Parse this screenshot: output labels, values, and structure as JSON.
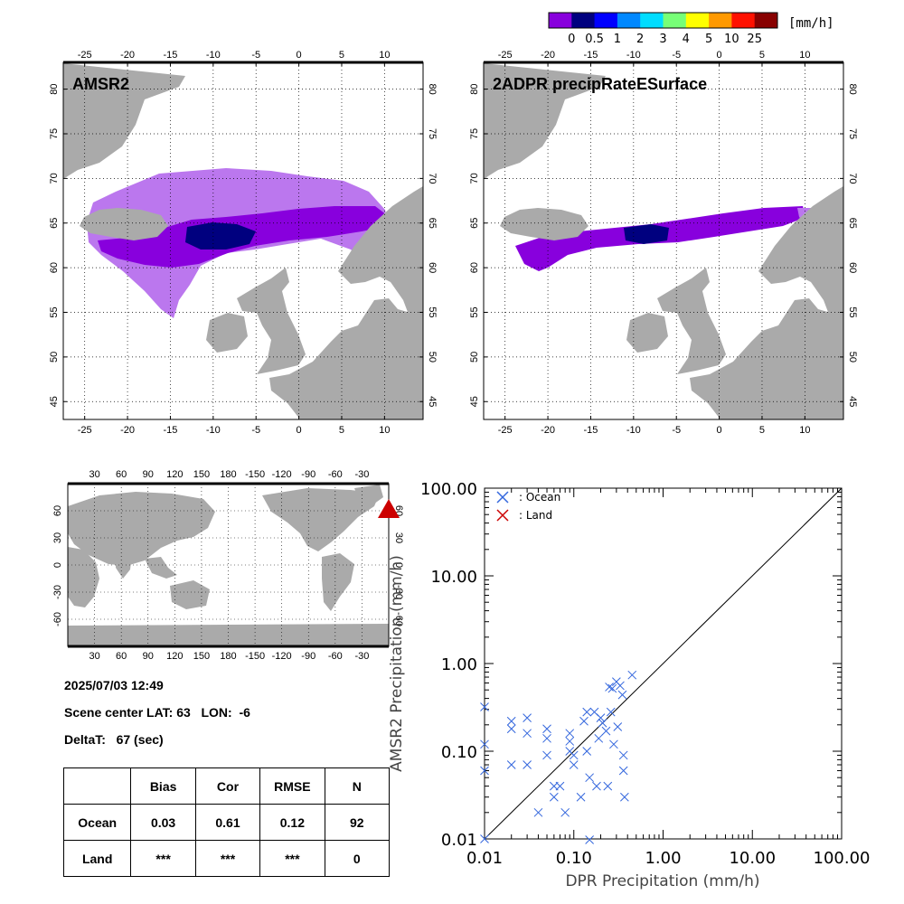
{
  "colorbar": {
    "unit": "[mm/h]",
    "labels": [
      "0",
      "0.5",
      "1",
      "2",
      "3",
      "4",
      "5",
      "10",
      "25"
    ],
    "colors": [
      "#8800dd",
      "#00007f",
      "#0000ff",
      "#0088ff",
      "#00ddff",
      "#77ff77",
      "#ffff00",
      "#ff9900",
      "#ff1100",
      "#880000"
    ]
  },
  "maps": {
    "map_left_title": "AMSR2",
    "map_right_title": "2ADPR precipRateESurface",
    "lon_ticks": [
      "-25",
      "-20",
      "-15",
      "-10",
      "-5",
      "0",
      "5",
      "10"
    ],
    "lat_ticks": [
      "80",
      "75",
      "70",
      "65",
      "60",
      "55",
      "50",
      "45"
    ],
    "land_color": "#aaaaaa",
    "precip_light_color": "#bb77ee",
    "precip_medium_color": "#8800dd",
    "precip_heavy_color": "#00007f"
  },
  "globe": {
    "lon_ticks": [
      "30",
      "60",
      "90",
      "120",
      "150",
      "180",
      "-150",
      "-120",
      "-90",
      "-60",
      "-30"
    ],
    "lat_ticks": [
      "60",
      "30",
      "0",
      "-30",
      "-60"
    ],
    "marker_color": "#cc0000"
  },
  "info": {
    "datetime": "2025/07/03 12:49",
    "scene_center": "Scene center LAT: 63   LON:  -6",
    "delta_t": "DeltaT:   67 (sec)"
  },
  "stats_table": {
    "headers": [
      "",
      "Bias",
      "Cor",
      "RMSE",
      "N"
    ],
    "rows": [
      [
        "Ocean",
        "0.03",
        "0.61",
        "0.12",
        "92"
      ],
      [
        "Land",
        "***",
        "***",
        "***",
        "0"
      ]
    ]
  },
  "chart_data": {
    "type": "scatter",
    "xlabel": "DPR Precipitation (mm/h)",
    "ylabel": "AMSR2 Precipitation (mm/h)",
    "xscale": "log",
    "yscale": "log",
    "xlim": [
      0.01,
      100
    ],
    "ylim": [
      0.01,
      100
    ],
    "x_tick_labels": [
      "0.01",
      "0.10",
      "1.00",
      "10.00",
      "100.00"
    ],
    "y_tick_labels": [
      "0.01",
      "0.10",
      "1.00",
      "10.00",
      "100.00"
    ],
    "legend_position": "top-left",
    "reference_line": "1:1",
    "series": [
      {
        "name": ": Ocean",
        "color": "#3366dd",
        "marker": "x",
        "points": [
          [
            0.01,
            0.32
          ],
          [
            0.01,
            0.12
          ],
          [
            0.01,
            0.06
          ],
          [
            0.01,
            0.01
          ],
          [
            0.02,
            0.22
          ],
          [
            0.02,
            0.18
          ],
          [
            0.02,
            0.07
          ],
          [
            0.03,
            0.24
          ],
          [
            0.03,
            0.16
          ],
          [
            0.03,
            0.07
          ],
          [
            0.04,
            0.02
          ],
          [
            0.05,
            0.18
          ],
          [
            0.05,
            0.14
          ],
          [
            0.05,
            0.09
          ],
          [
            0.06,
            0.04
          ],
          [
            0.06,
            0.03
          ],
          [
            0.07,
            0.04
          ],
          [
            0.08,
            0.02
          ],
          [
            0.09,
            0.16
          ],
          [
            0.09,
            0.13
          ],
          [
            0.09,
            0.1
          ],
          [
            0.1,
            0.09
          ],
          [
            0.1,
            0.07
          ],
          [
            0.12,
            0.03
          ],
          [
            0.13,
            0.22
          ],
          [
            0.14,
            0.28
          ],
          [
            0.14,
            0.1
          ],
          [
            0.15,
            0.05
          ],
          [
            0.15,
            0.009
          ],
          [
            0.17,
            0.28
          ],
          [
            0.18,
            0.04
          ],
          [
            0.19,
            0.14
          ],
          [
            0.2,
            0.24
          ],
          [
            0.21,
            0.21
          ],
          [
            0.23,
            0.17
          ],
          [
            0.24,
            0.04
          ],
          [
            0.25,
            0.54
          ],
          [
            0.26,
            0.28
          ],
          [
            0.27,
            0.52
          ],
          [
            0.28,
            0.12
          ],
          [
            0.3,
            0.62
          ],
          [
            0.31,
            0.19
          ],
          [
            0.33,
            0.56
          ],
          [
            0.35,
            0.44
          ],
          [
            0.36,
            0.09
          ],
          [
            0.36,
            0.06
          ],
          [
            0.37,
            0.03
          ],
          [
            0.45,
            0.74
          ]
        ]
      },
      {
        "name": ": Land",
        "color": "#cc0000",
        "marker": "x",
        "points": []
      }
    ]
  }
}
